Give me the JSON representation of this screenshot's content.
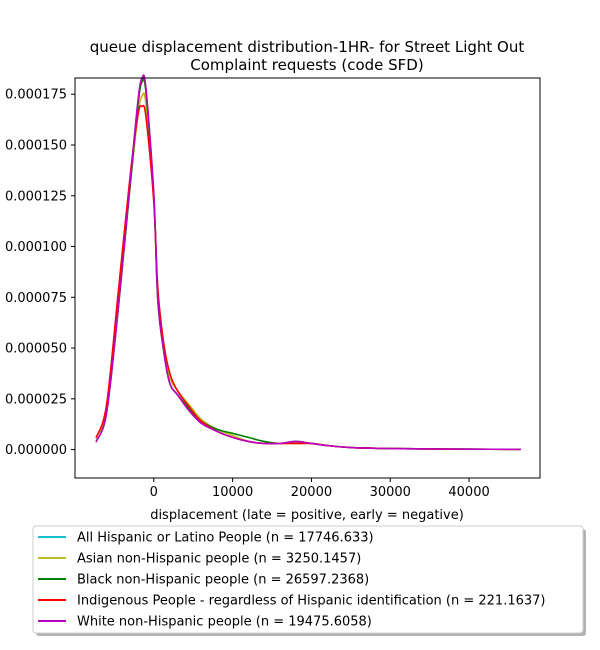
{
  "chart_data": {
    "type": "line",
    "title_lines": [
      "queue displacement distribution-1HR-  for Street Light Out",
      "Complaint  requests (code SFD)"
    ],
    "xlabel": "displacement (late = positive, early = negative)",
    "ylabel": "",
    "xlim": [
      -10000,
      49000
    ],
    "ylim": [
      -1.4e-05,
      0.000183
    ],
    "x_ticks": [
      0,
      10000,
      20000,
      30000,
      40000
    ],
    "x_tick_labels": [
      "0",
      "10000",
      "20000",
      "30000",
      "40000"
    ],
    "y_ticks": [
      0.0,
      2.5e-05,
      5e-05,
      7.5e-05,
      0.0001,
      0.000125,
      0.00015,
      0.000175
    ],
    "y_tick_labels": [
      "0.000000",
      "0.000025",
      "0.000050",
      "0.000075",
      "0.000100",
      "0.000125",
      "0.000150",
      "0.000175"
    ],
    "grid": false,
    "legend_position": "below",
    "series": [
      {
        "name": "All Hispanic or Latino People (n = 17746.633)",
        "color": "#17becf",
        "points": [
          [
            -7300,
            4e-06
          ],
          [
            -6000,
            1.8e-05
          ],
          [
            -4500,
            7e-05
          ],
          [
            -3000,
            0.000132
          ],
          [
            -2000,
            0.000172
          ],
          [
            -1500,
            0.000182
          ],
          [
            -1000,
            0.000177
          ],
          [
            0,
            0.000125
          ],
          [
            500,
            7.5e-05
          ],
          [
            1200,
            5e-05
          ],
          [
            2000,
            3.3e-05
          ],
          [
            3000,
            2.7e-05
          ],
          [
            4500,
            2e-05
          ],
          [
            6000,
            1.4e-05
          ],
          [
            8000,
            9e-06
          ],
          [
            10000,
            6e-06
          ],
          [
            12000,
            4e-06
          ],
          [
            14000,
            3e-06
          ],
          [
            16000,
            3e-06
          ],
          [
            18000,
            4e-06
          ],
          [
            20000,
            3e-06
          ],
          [
            22000,
            2e-06
          ],
          [
            25000,
            1e-06
          ],
          [
            30000,
            5e-07
          ],
          [
            35000,
            3e-07
          ],
          [
            40000,
            2e-07
          ],
          [
            46500,
            1e-07
          ]
        ]
      },
      {
        "name": "Asian non-Hispanic people (n = 3250.1457)",
        "color": "#bcbd22",
        "points": [
          [
            -7300,
            6e-06
          ],
          [
            -6000,
            2e-05
          ],
          [
            -4500,
            7.2e-05
          ],
          [
            -3000,
            0.00013
          ],
          [
            -2000,
            0.000165
          ],
          [
            -1500,
            0.000174
          ],
          [
            -1000,
            0.00017
          ],
          [
            0,
            0.000122
          ],
          [
            500,
            7.5e-05
          ],
          [
            1200,
            5.2e-05
          ],
          [
            2000,
            3.6e-05
          ],
          [
            3000,
            2.9e-05
          ],
          [
            4500,
            2.2e-05
          ],
          [
            6000,
            1.5e-05
          ],
          [
            8000,
            1e-05
          ],
          [
            10000,
            7e-06
          ],
          [
            12000,
            4e-06
          ],
          [
            14000,
            3e-06
          ],
          [
            16000,
            3e-06
          ],
          [
            18000,
            3e-06
          ],
          [
            20000,
            3e-06
          ],
          [
            22000,
            2e-06
          ],
          [
            25000,
            1e-06
          ],
          [
            30000,
            5e-07
          ],
          [
            35000,
            3e-07
          ],
          [
            40000,
            2e-07
          ],
          [
            46500,
            1e-07
          ]
        ]
      },
      {
        "name": "Black non-Hispanic people (n = 26597.2368)",
        "color": "#008000",
        "points": [
          [
            -7300,
            4e-06
          ],
          [
            -6000,
            1.8e-05
          ],
          [
            -4500,
            7e-05
          ],
          [
            -3000,
            0.00013
          ],
          [
            -2000,
            0.00017
          ],
          [
            -1500,
            0.000181
          ],
          [
            -1000,
            0.000176
          ],
          [
            0,
            0.000124
          ],
          [
            500,
            7.4e-05
          ],
          [
            1200,
            5e-05
          ],
          [
            2000,
            3.3e-05
          ],
          [
            3000,
            2.7e-05
          ],
          [
            4500,
            2e-05
          ],
          [
            6000,
            1.4e-05
          ],
          [
            8000,
            1e-05
          ],
          [
            10000,
            8e-06
          ],
          [
            12000,
            6e-06
          ],
          [
            14000,
            4e-06
          ],
          [
            16000,
            3e-06
          ],
          [
            18000,
            4e-06
          ],
          [
            20000,
            3e-06
          ],
          [
            22000,
            2e-06
          ],
          [
            25000,
            1e-06
          ],
          [
            30000,
            5e-07
          ],
          [
            35000,
            3e-07
          ],
          [
            40000,
            2e-07
          ],
          [
            46500,
            1e-07
          ]
        ]
      },
      {
        "name": "Indigenous People - regardless of Hispanic identification (n = 221.1637)",
        "color": "#ff0000",
        "points": [
          [
            -7300,
            6e-06
          ],
          [
            -6000,
            2.2e-05
          ],
          [
            -4500,
            7.8e-05
          ],
          [
            -3000,
            0.000135
          ],
          [
            -2000,
            0.000165
          ],
          [
            -1500,
            0.000169
          ],
          [
            -1000,
            0.000164
          ],
          [
            0,
            0.000122
          ],
          [
            500,
            8e-05
          ],
          [
            1200,
            5.4e-05
          ],
          [
            2000,
            3.8e-05
          ],
          [
            3000,
            2.9e-05
          ],
          [
            4500,
            2.1e-05
          ],
          [
            6000,
            1.4e-05
          ],
          [
            8000,
            9e-06
          ],
          [
            10000,
            6e-06
          ],
          [
            12000,
            4e-06
          ],
          [
            14000,
            3e-06
          ],
          [
            16000,
            3e-06
          ],
          [
            18000,
            3e-06
          ],
          [
            20000,
            3e-06
          ],
          [
            22000,
            2e-06
          ],
          [
            25000,
            1e-06
          ],
          [
            30000,
            5e-07
          ],
          [
            35000,
            3e-07
          ],
          [
            40000,
            2e-07
          ],
          [
            46500,
            1e-07
          ]
        ]
      },
      {
        "name": "White non-Hispanic people (n = 19475.6058)",
        "color": "#bf00bf",
        "points": [
          [
            -7300,
            4e-06
          ],
          [
            -6000,
            1.8e-05
          ],
          [
            -4500,
            7e-05
          ],
          [
            -3000,
            0.000132
          ],
          [
            -2000,
            0.000172
          ],
          [
            -1500,
            0.000183
          ],
          [
            -1000,
            0.000178
          ],
          [
            0,
            0.000126
          ],
          [
            500,
            7.5e-05
          ],
          [
            1200,
            5e-05
          ],
          [
            2000,
            3.3e-05
          ],
          [
            3000,
            2.7e-05
          ],
          [
            4500,
            1.9e-05
          ],
          [
            6000,
            1.3e-05
          ],
          [
            8000,
            9e-06
          ],
          [
            10000,
            6e-06
          ],
          [
            12000,
            4e-06
          ],
          [
            14000,
            3e-06
          ],
          [
            16000,
            3e-06
          ],
          [
            18000,
            4e-06
          ],
          [
            20000,
            3e-06
          ],
          [
            22000,
            2e-06
          ],
          [
            25000,
            1e-06
          ],
          [
            30000,
            5e-07
          ],
          [
            35000,
            3e-07
          ],
          [
            40000,
            2e-07
          ],
          [
            46500,
            1e-07
          ]
        ]
      }
    ]
  }
}
